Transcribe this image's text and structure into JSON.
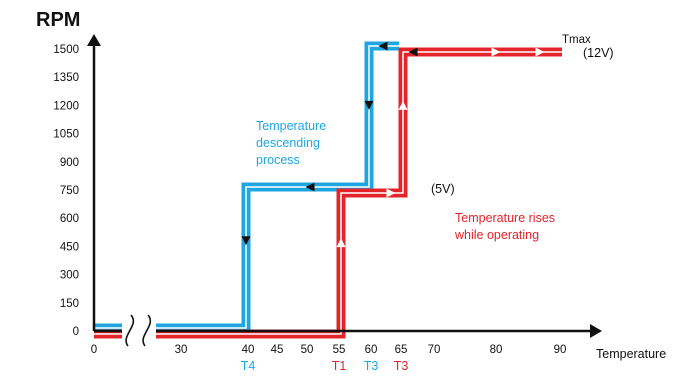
{
  "chart_data": {
    "type": "line",
    "ylabel": "RPM",
    "xlabel": "Temperature",
    "x_ticks": [
      "0",
      "30",
      "40",
      "45",
      "50",
      "55",
      "60",
      "65",
      "70",
      "80",
      "90"
    ],
    "y_ticks": [
      "0",
      "150",
      "300",
      "450",
      "600",
      "750",
      "900",
      "1050",
      "1200",
      "1350",
      "1500"
    ],
    "ylim": [
      0,
      1650
    ],
    "axis_break": "between 0 and 30",
    "threshold_labels": [
      {
        "label": "T4",
        "x": 40,
        "color": "#1ea6e0"
      },
      {
        "label": "T1",
        "x": 55,
        "color": "#e3242b"
      },
      {
        "label": "T3",
        "x": 60,
        "color": "#1ea6e0"
      },
      {
        "label": "T3",
        "x": 65,
        "color": "#e3242b"
      }
    ],
    "series": [
      {
        "color": "#1ea6e0",
        "x": [
          0,
          40,
          40,
          60,
          60,
          65
        ],
        "y": [
          0,
          0,
          750,
          750,
          1500,
          1500
        ]
      },
      {
        "color": "#e3242b",
        "x": [
          0,
          55,
          55,
          65,
          65,
          90
        ],
        "y": [
          0,
          0,
          750,
          750,
          1500,
          1500
        ]
      }
    ],
    "annotations": [
      {
        "text": "Temperature descending process",
        "lines": [
          "Temperature",
          "descending",
          "process"
        ],
        "color": "#1ea6e0"
      },
      {
        "text": "Temperature rises while operating",
        "lines": [
          "Temperature rises",
          "while operating"
        ],
        "color": "#e3242b"
      },
      {
        "text": "(5V)",
        "color": "#111111"
      },
      {
        "text": "Tmax",
        "color": "#111111"
      },
      {
        "text": "(12V)",
        "color": "#111111"
      }
    ],
    "grid": false,
    "legend": "none"
  }
}
